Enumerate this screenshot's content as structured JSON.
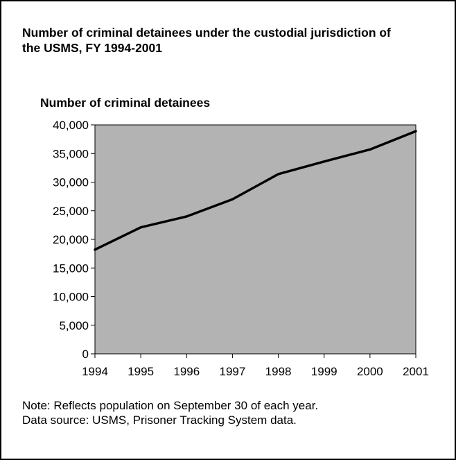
{
  "title": "Number of criminal detainees under the custodial jurisdiction of the USMS, FY 1994-2001",
  "note": "Note: Reflects population on September 30 of each year.",
  "source": "Data source: USMS, Prisoner Tracking System data.",
  "colors": {
    "plot_background": "#b3b3b3",
    "line": "#000000"
  },
  "chart_data": {
    "type": "line",
    "title": "Number of criminal detainees under the custodial jurisdiction of the USMS, FY 1994-2001",
    "ylabel": "Number of criminal detainees",
    "xlabel": "",
    "x": [
      "1994",
      "1995",
      "1996",
      "1997",
      "1998",
      "1999",
      "2000",
      "2001"
    ],
    "series": [
      {
        "values": [
          18200,
          22100,
          24000,
          27000,
          31400,
          33600,
          35700,
          38900
        ]
      }
    ],
    "ylim": [
      0,
      40000
    ],
    "yticks": [
      0,
      5000,
      10000,
      15000,
      20000,
      25000,
      30000,
      35000,
      40000
    ],
    "ytick_labels": [
      "0",
      "5,000",
      "10,000",
      "15,000",
      "20,000",
      "25,000",
      "30,000",
      "35,000",
      "40,000"
    ],
    "grid": false,
    "legend": "none"
  }
}
